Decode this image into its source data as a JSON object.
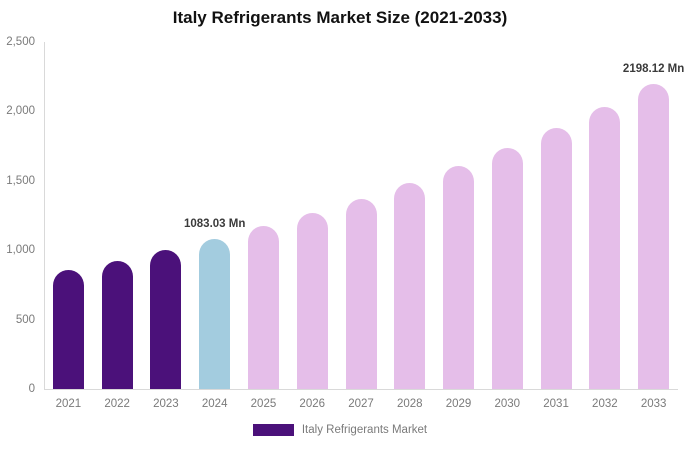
{
  "title": "Italy Refrigerants Market Size (2021-2033)",
  "legend": {
    "label": "Italy Refrigerants Market"
  },
  "colors": {
    "historical_bar": "#4b117a",
    "current_bar": "#a3ccdf",
    "forecast_bar": "#e5bee9",
    "axis_line": "#d9d9d9",
    "tick_label": "#7a7a7a",
    "annotation_text": "#3b3b3b",
    "title_text": "#111111",
    "background": "#ffffff"
  },
  "y_axis": {
    "tick_labels": [
      "2,500",
      "2,000",
      "1,500",
      "1,000",
      "500",
      "0"
    ],
    "tick_values": [
      2500,
      2000,
      1500,
      1000,
      500,
      0
    ],
    "min": 0,
    "max": 2500
  },
  "chart_data": {
    "type": "bar",
    "title": "Italy Refrigerants Market Size (2021-2033)",
    "series_name": "Italy Refrigerants Market",
    "categories": [
      "2021",
      "2022",
      "2023",
      "2024",
      "2025",
      "2026",
      "2027",
      "2028",
      "2029",
      "2030",
      "2031",
      "2032",
      "2033"
    ],
    "values": [
      855,
      925,
      1001,
      1083.03,
      1172,
      1268,
      1371,
      1484,
      1605,
      1737,
      1879,
      2033,
      2198.12
    ],
    "unit": "Mn",
    "bar_roles": [
      "historical",
      "historical",
      "historical",
      "current",
      "forecast",
      "forecast",
      "forecast",
      "forecast",
      "forecast",
      "forecast",
      "forecast",
      "forecast",
      "forecast"
    ],
    "annotations": [
      {
        "category": "2024",
        "text": "1083.03 Mn"
      },
      {
        "category": "2033",
        "text": "2198.12 Mn"
      }
    ],
    "xlabel": "",
    "ylabel": "",
    "ylim": [
      0,
      2500
    ],
    "grid": false,
    "legend_position": "bottom"
  }
}
